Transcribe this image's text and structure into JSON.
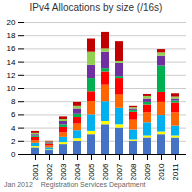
{
  "chart_data": {
    "type": "bar",
    "stacked": true,
    "title": "IPv4 Allocations by size (/16s)",
    "categories": [
      "2001",
      "2002",
      "2003",
      "2004",
      "2005",
      "2006",
      "2007",
      "2008",
      "2009",
      "2010",
      "2011"
    ],
    "series": [
      {
        "color": "#4472c4",
        "values": [
          1.0,
          0.6,
          1.5,
          2.0,
          3.0,
          4.5,
          4.0,
          2.0,
          2.5,
          3.0,
          2.5
        ]
      },
      {
        "color": "#ffff00",
        "values": [
          0.2,
          0.1,
          0.3,
          0.4,
          0.5,
          0.5,
          0.5,
          0.2,
          0.3,
          0.4,
          0.3
        ]
      },
      {
        "color": "#00b0f0",
        "values": [
          0.5,
          0.3,
          0.8,
          1.2,
          2.5,
          3.0,
          2.5,
          1.5,
          2.0,
          2.5,
          1.5
        ]
      },
      {
        "color": "#ff6600",
        "values": [
          0.4,
          0.3,
          0.7,
          1.0,
          2.0,
          2.5,
          2.0,
          1.5,
          1.5,
          2.0,
          2.0
        ]
      },
      {
        "color": "#ff0000",
        "values": [
          0.5,
          0.3,
          0.8,
          1.0,
          1.5,
          2.0,
          2.5,
          1.2,
          1.2,
          1.5,
          1.5
        ]
      },
      {
        "color": "#00b050",
        "values": [
          0.2,
          0.1,
          0.4,
          0.5,
          2.0,
          0.5,
          0.3,
          0.3,
          0.4,
          4.0,
          0.3
        ]
      },
      {
        "color": "#7030a0",
        "values": [
          0.2,
          0.1,
          0.5,
          0.8,
          2.0,
          2.5,
          2.0,
          0.2,
          0.5,
          1.5,
          0.3
        ]
      },
      {
        "color": "#92d050",
        "values": [
          0.2,
          0.1,
          0.3,
          0.4,
          2.0,
          0.5,
          0.3,
          0.2,
          0.4,
          0.5,
          0.3
        ]
      },
      {
        "color": "#c00000",
        "values": [
          0.3,
          0.1,
          0.4,
          0.6,
          2.0,
          2.5,
          3.0,
          0.2,
          0.3,
          0.5,
          0.5
        ]
      }
    ],
    "ylim": [
      0,
      20
    ],
    "yticks": [
      0,
      2,
      4,
      6,
      8,
      10,
      12,
      14,
      16,
      18,
      20
    ],
    "grid": true,
    "annotations": [
      "Jan 2012",
      "Registration Services Department"
    ]
  }
}
